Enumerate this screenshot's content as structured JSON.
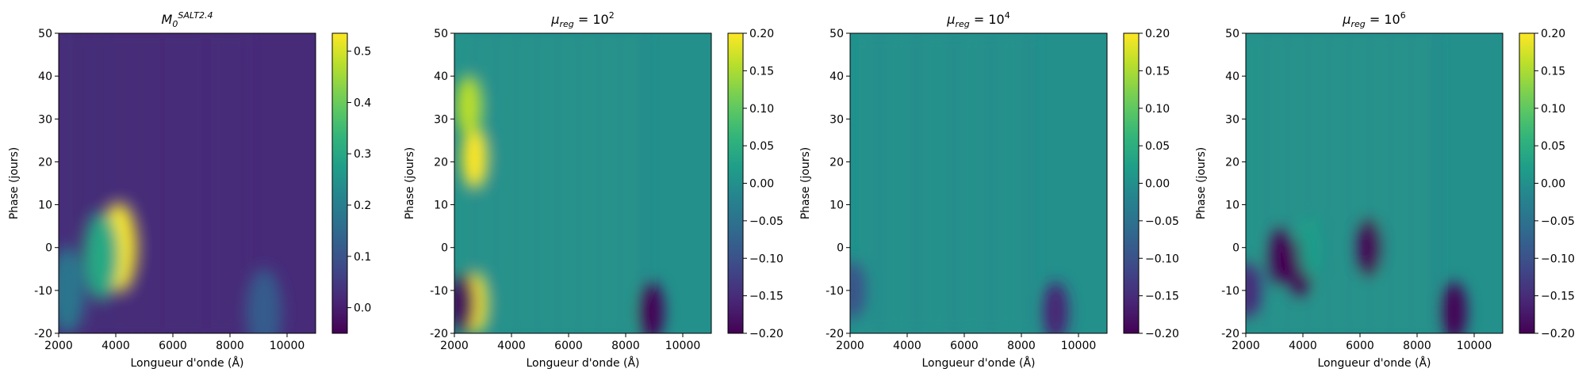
{
  "figure": {
    "panels": [
      {
        "title_main": "M",
        "title_sub": "0",
        "title_sup": "SALT2.4"
      },
      {
        "title_main": "μ",
        "title_sub": "reg",
        "title_eq": " = 10",
        "title_sup": "2"
      },
      {
        "title_main": "μ",
        "title_sub": "reg",
        "title_eq": " = 10",
        "title_sup": "4"
      },
      {
        "title_main": "μ",
        "title_sub": "reg",
        "title_eq": " = 10",
        "title_sup": "6"
      }
    ],
    "xlabel": "Longueur d'onde (Å)",
    "ylabel": "Phase (jours)"
  },
  "chart_data": [
    {
      "type": "heatmap",
      "xlim": [
        2000,
        11000
      ],
      "ylim": [
        -20,
        50
      ],
      "xticks": [
        "2000",
        "4000",
        "6000",
        "8000",
        "10000"
      ],
      "yticks": [
        "-20",
        "-10",
        "0",
        "10",
        "20",
        "30",
        "40",
        "50"
      ],
      "colorbar": {
        "min": -0.05,
        "max": 0.535,
        "colormap": "viridis",
        "ticks": [
          "0.0",
          "0.1",
          "0.2",
          "0.3",
          "0.4",
          "0.5"
        ]
      },
      "features": [
        {
          "x": 4100,
          "y": 0,
          "value": 0.53
        },
        {
          "x": 3500,
          "y": -2,
          "value": 0.3
        },
        {
          "x": 2300,
          "y": -10,
          "value": 0.18
        },
        {
          "x": 9200,
          "y": -15,
          "value": 0.12
        }
      ]
    },
    {
      "type": "heatmap",
      "xlim": [
        2000,
        11000
      ],
      "ylim": [
        -20,
        50
      ],
      "xticks": [
        "2000",
        "4000",
        "6000",
        "8000",
        "10000"
      ],
      "yticks": [
        "-20",
        "-10",
        "0",
        "10",
        "20",
        "30",
        "40",
        "50"
      ],
      "colorbar": {
        "min": -0.2,
        "max": 0.2,
        "colormap": "viridis",
        "ticks": [
          "−0.20",
          "−0.15",
          "−0.10",
          "−0.05",
          "0.00",
          "0.05",
          "0.10",
          "0.15",
          "0.20"
        ]
      },
      "features": [
        {
          "x": 2700,
          "y": 21,
          "value": 0.2
        },
        {
          "x": 2700,
          "y": -13,
          "value": 0.2
        },
        {
          "x": 2300,
          "y": -13,
          "value": -0.2
        },
        {
          "x": 8900,
          "y": -15,
          "value": -0.2
        },
        {
          "x": 2500,
          "y": 33,
          "value": 0.16
        }
      ]
    },
    {
      "type": "heatmap",
      "xlim": [
        2000,
        11000
      ],
      "ylim": [
        -20,
        50
      ],
      "xticks": [
        "2000",
        "4000",
        "6000",
        "8000",
        "10000"
      ],
      "yticks": [
        "-20",
        "-10",
        "0",
        "10",
        "20",
        "30",
        "40",
        "50"
      ],
      "colorbar": {
        "min": -0.2,
        "max": 0.2,
        "colormap": "viridis",
        "ticks": [
          "−0.20",
          "−0.15",
          "−0.10",
          "−0.05",
          "0.00",
          "0.05",
          "0.10",
          "0.15",
          "0.20"
        ]
      },
      "features": [
        {
          "x": 2100,
          "y": -10,
          "value": -0.1
        },
        {
          "x": 9200,
          "y": -15,
          "value": -0.16
        }
      ]
    },
    {
      "type": "heatmap",
      "xlim": [
        2000,
        11000
      ],
      "ylim": [
        -20,
        50
      ],
      "xticks": [
        "2000",
        "4000",
        "6000",
        "8000",
        "10000"
      ],
      "yticks": [
        "-20",
        "-10",
        "0",
        "10",
        "20",
        "30",
        "40",
        "50"
      ],
      "colorbar": {
        "min": -0.2,
        "max": 0.2,
        "colormap": "viridis",
        "ticks": [
          "−0.20",
          "−0.15",
          "−0.10",
          "−0.05",
          "0.00",
          "0.05",
          "0.10",
          "0.15",
          "0.20"
        ]
      },
      "features": [
        {
          "x": 3200,
          "y": -2,
          "value": -0.2
        },
        {
          "x": 3900,
          "y": -5,
          "value": -0.2
        },
        {
          "x": 6300,
          "y": 0,
          "value": -0.2
        },
        {
          "x": 4300,
          "y": 0,
          "value": 0.02
        },
        {
          "x": 9300,
          "y": -15,
          "value": -0.2
        },
        {
          "x": 2100,
          "y": -10,
          "value": -0.15
        }
      ]
    }
  ]
}
